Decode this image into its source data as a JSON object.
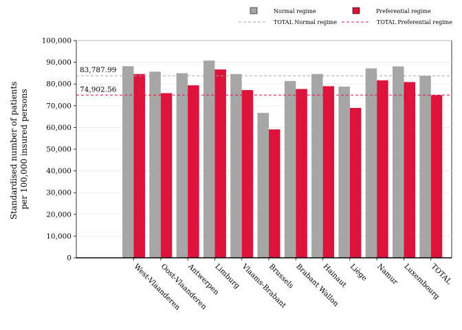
{
  "chart_data": {
    "type": "bar",
    "ylabel_lines": [
      "Standardised number of patients",
      "per 100,000 insured persons"
    ],
    "ylim": [
      0,
      100000
    ],
    "yticks": [
      0,
      10000,
      20000,
      30000,
      40000,
      50000,
      60000,
      70000,
      80000,
      90000,
      100000
    ],
    "ytick_labels": [
      "0",
      "10,000",
      "20,000",
      "30,000",
      "40,000",
      "50,000",
      "60,000",
      "70,000",
      "80,000",
      "90,000",
      "100,000"
    ],
    "grid": true,
    "legend_position": "top",
    "categories": [
      "West-Vlaanderen",
      "Oost-Vlaanderen",
      "Antwerpen",
      "Limburg",
      "Vlaams-Brabant",
      "Brussels",
      "Brabant Wallon",
      "Hainaut",
      "Liège",
      "Namur",
      "Luxembourg",
      "TOTAL"
    ],
    "series": [
      {
        "name": "Normal regime",
        "color": "#a6a6a6",
        "values": [
          88200,
          85700,
          85000,
          90800,
          84600,
          66700,
          81400,
          84600,
          78800,
          87200,
          88100,
          83788
        ]
      },
      {
        "name": "Preferential regime",
        "color": "#dc143c",
        "values": [
          84600,
          75800,
          79400,
          86700,
          77200,
          59100,
          77700,
          79000,
          69000,
          81700,
          80900,
          74903
        ]
      }
    ],
    "reference_lines": [
      {
        "name": "TOTAL Normal regime",
        "value": 83787.99,
        "label": "83,787.99",
        "color": "#a6a6a6"
      },
      {
        "name": "TOTAL Preferential regime",
        "value": 74902.56,
        "label": "74,902.56",
        "color": "#dc143c"
      }
    ]
  }
}
